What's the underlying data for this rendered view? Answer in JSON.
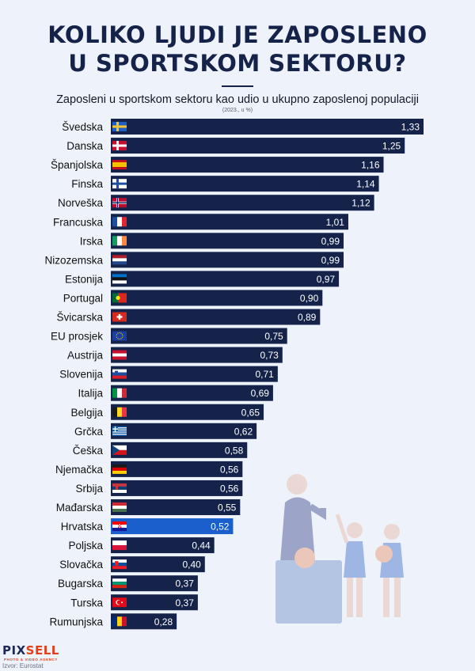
{
  "header": {
    "title_line1": "KOLIKO LJUDI JE ZAPOSLENO",
    "title_line2": "U SPORTSKOM SEKTORU?",
    "subtitle": "Zaposleni u sportskom sektoru kao udio u ukupno zaposlenoj populaciji",
    "note": "(2023., u %)"
  },
  "colors": {
    "bar": "#15234a",
    "highlight": "#1a5fcc",
    "title": "#15234a"
  },
  "chart_data": {
    "type": "bar",
    "orientation": "horizontal",
    "title": "Zaposleni u sportskom sektoru kao udio u ukupno zaposlenoj populaciji",
    "subtitle": "(2023., u %)",
    "categories": [
      "Švedska",
      "Danska",
      "Španjolska",
      "Finska",
      "Norveška",
      "Francuska",
      "Irska",
      "Nizozemska",
      "Estonija",
      "Portugal",
      "Švicarska",
      "EU prosjek",
      "Austrija",
      "Slovenija",
      "Italija",
      "Belgija",
      "Grčka",
      "Češka",
      "Njemačka",
      "Srbija",
      "Mađarska",
      "Hrvatska",
      "Poljska",
      "Slovačka",
      "Bugarska",
      "Turska",
      "Rumunjska"
    ],
    "values": [
      1.33,
      1.25,
      1.16,
      1.14,
      1.12,
      1.01,
      0.99,
      0.99,
      0.97,
      0.9,
      0.89,
      0.75,
      0.73,
      0.71,
      0.69,
      0.65,
      0.62,
      0.58,
      0.56,
      0.56,
      0.55,
      0.52,
      0.44,
      0.4,
      0.37,
      0.37,
      0.28
    ],
    "value_labels": [
      "1,33",
      "1,25",
      "1,16",
      "1,14",
      "1,12",
      "1,01",
      "0,99",
      "0,99",
      "0,97",
      "0,90",
      "0,89",
      "0,75",
      "0,73",
      "0,71",
      "0,69",
      "0,65",
      "0,62",
      "0,58",
      "0,56",
      "0,56",
      "0,55",
      "0,52",
      "0,44",
      "0,40",
      "0,37",
      "0,37",
      "0,28"
    ],
    "flags": [
      "flag-se",
      "flag-dk",
      "flag-es",
      "flag-fi",
      "flag-no",
      "flag-fr",
      "flag-ie",
      "flag-nl",
      "flag-ee",
      "flag-pt",
      "flag-ch",
      "flag-eu",
      "flag-at",
      "flag-si",
      "flag-it",
      "flag-be",
      "flag-gr",
      "flag-cz",
      "flag-de",
      "flag-rs",
      "flag-hu",
      "flag-hr",
      "flag-pl",
      "flag-sk",
      "flag-bg",
      "flag-tr",
      "flag-ro"
    ],
    "highlight": "Hrvatska",
    "xlim": [
      0,
      1.33
    ],
    "grid": false,
    "legend": "none"
  },
  "footer": {
    "logo_part1": "PIX",
    "logo_part2": "SELL",
    "logo_tagline": "PHOTO & VIDEO AGENCY",
    "source": "Izvor: Eurostat"
  }
}
